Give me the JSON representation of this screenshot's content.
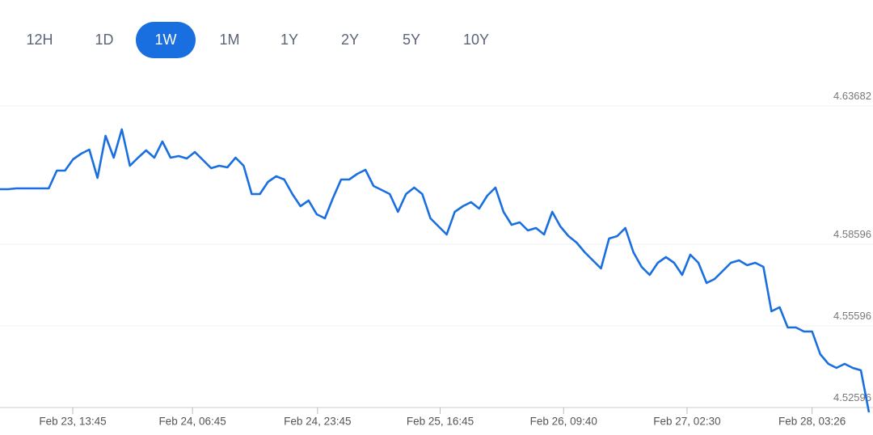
{
  "tabs": [
    {
      "label": "12H"
    },
    {
      "label": "1D"
    },
    {
      "label": "1W",
      "selected": true
    },
    {
      "label": "1M"
    },
    {
      "label": "1Y"
    },
    {
      "label": "2Y"
    },
    {
      "label": "5Y"
    },
    {
      "label": "10Y"
    }
  ],
  "chart_data": {
    "type": "line",
    "color": "#1a6fe0",
    "grid": true,
    "values": [
      4.6062,
      4.6062,
      4.6065,
      4.6065,
      4.6065,
      4.6065,
      4.6065,
      4.61304,
      4.61304,
      4.6172,
      4.61928,
      4.62077,
      4.61036,
      4.62582,
      4.61779,
      4.6282,
      4.61482,
      4.61779,
      4.62047,
      4.61779,
      4.62374,
      4.61779,
      4.61839,
      4.6175,
      4.61988,
      4.6169,
      4.61393,
      4.61482,
      4.61423,
      4.61779,
      4.61482,
      4.60442,
      4.60442,
      4.60888,
      4.61096,
      4.60977,
      4.60442,
      4.59996,
      4.60204,
      4.59699,
      4.5955,
      4.60293,
      4.60977,
      4.60977,
      4.61185,
      4.61334,
      4.60739,
      4.60591,
      4.60442,
      4.59788,
      4.60442,
      4.6068,
      4.60442,
      4.5955,
      4.59253,
      4.58956,
      4.59788,
      4.59996,
      4.60145,
      4.59907,
      4.60383,
      4.6068,
      4.59788,
      4.59313,
      4.59402,
      4.59105,
      4.59194,
      4.58956,
      4.59788,
      4.59253,
      4.58897,
      4.58659,
      4.58302,
      4.58005,
      4.57708,
      4.58807,
      4.58897,
      4.59194,
      4.58302,
      4.57767,
      4.5747,
      4.57916,
      4.58124,
      4.57916,
      4.5747,
      4.58213,
      4.57916,
      4.57173,
      4.57321,
      4.57619,
      4.57916,
      4.58005,
      4.57827,
      4.57916,
      4.57767,
      4.56133,
      4.56281,
      4.55538,
      4.55538,
      4.5539,
      4.5539,
      4.54558,
      4.54201,
      4.54052,
      4.54201,
      4.54052,
      4.53963,
      4.52418
    ],
    "xlim": [
      0,
      107
    ],
    "xticks": [
      {
        "value": 8.96,
        "label": "Feb 23, 13:45"
      },
      {
        "value": 23.7,
        "label": "Feb 24, 06:45"
      },
      {
        "value": 39.1,
        "label": "Feb 24, 23:45"
      },
      {
        "value": 54.2,
        "label": "Feb 25, 16:45"
      },
      {
        "value": 69.4,
        "label": "Feb 26, 09:40"
      },
      {
        "value": 84.6,
        "label": "Feb 27, 02:30"
      },
      {
        "value": 100.0,
        "label": "Feb 28, 03:26"
      }
    ],
    "ylim": [
      4.52596,
      4.63682
    ],
    "yticks": [
      4.52596,
      4.55596,
      4.58596,
      4.63682
    ]
  }
}
